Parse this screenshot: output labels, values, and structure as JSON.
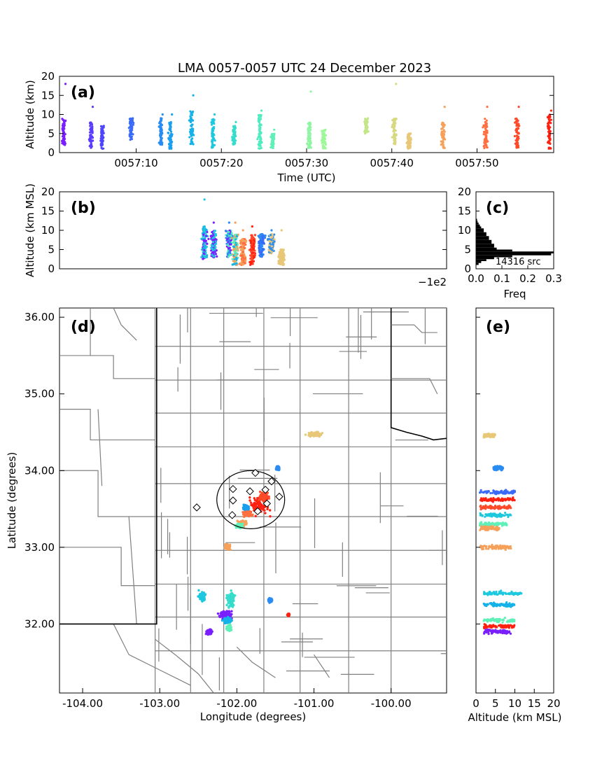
{
  "figure": {
    "title": "LMA 0057-0057 UTC 24 December 2023"
  },
  "chart_data": [
    {
      "panel": "(a)",
      "type": "scatter",
      "xlabel": "Time (UTC)",
      "ylabel": "Altitude (km)",
      "x_tick_labels": [
        "0057:10",
        "0057:20",
        "0057:30",
        "0057:40",
        "0057:50"
      ],
      "x_tick_seconds": [
        10,
        20,
        30,
        40,
        50
      ],
      "xlim_seconds": [
        1,
        59
      ],
      "ylim": [
        0,
        20
      ],
      "y_ticks": [
        0,
        5,
        10,
        15,
        20
      ],
      "colormap": "rainbow (time)",
      "flashes": [
        {
          "t": 1.5,
          "zmin": 2,
          "zmax": 9,
          "top": 18,
          "color": "#7a1fff"
        },
        {
          "t": 4.7,
          "zmin": 1,
          "zmax": 8,
          "top": 12,
          "color": "#5a3cff"
        },
        {
          "t": 6.0,
          "zmin": 1,
          "zmax": 7,
          "top": 7,
          "color": "#4f45fe"
        },
        {
          "t": 9.4,
          "zmin": 3,
          "zmax": 9,
          "top": 9,
          "color": "#3a6af8"
        },
        {
          "t": 12.9,
          "zmin": 2,
          "zmax": 9,
          "top": 10,
          "color": "#2a8cf2"
        },
        {
          "t": 14.0,
          "zmin": 1,
          "zmax": 8,
          "top": 10,
          "color": "#1a9fee"
        },
        {
          "t": 16.5,
          "zmin": 2,
          "zmax": 11,
          "top": 15,
          "color": "#14b2e8"
        },
        {
          "t": 19.0,
          "zmin": 1,
          "zmax": 9,
          "top": 10,
          "color": "#1ec8de"
        },
        {
          "t": 21.5,
          "zmin": 2,
          "zmax": 7,
          "top": 8,
          "color": "#36dccc"
        },
        {
          "t": 24.5,
          "zmin": 1,
          "zmax": 10,
          "top": 11,
          "color": "#4fecc0"
        },
        {
          "t": 26.0,
          "zmin": 1,
          "zmax": 5,
          "top": 6,
          "color": "#60f0b8"
        },
        {
          "t": 30.3,
          "zmin": 1,
          "zmax": 8,
          "top": 16,
          "color": "#8ef5a2"
        },
        {
          "t": 32.0,
          "zmin": 1,
          "zmax": 6,
          "top": 6,
          "color": "#9ef79a"
        },
        {
          "t": 37.0,
          "zmin": 5,
          "zmax": 9,
          "top": 9,
          "color": "#c4e68a"
        },
        {
          "t": 40.3,
          "zmin": 2,
          "zmax": 9,
          "top": 18,
          "color": "#d8d880"
        },
        {
          "t": 42.0,
          "zmin": 1,
          "zmax": 5,
          "top": 5,
          "color": "#e8c878"
        },
        {
          "t": 46.0,
          "zmin": 1,
          "zmax": 8,
          "top": 12,
          "color": "#f7a05a"
        },
        {
          "t": 51.0,
          "zmin": 1,
          "zmax": 9,
          "top": 12,
          "color": "#ff7040"
        },
        {
          "t": 54.7,
          "zmin": 1,
          "zmax": 9,
          "top": 12,
          "color": "#ff4a2a"
        },
        {
          "t": 58.5,
          "zmin": 1,
          "zmax": 10,
          "top": 11,
          "color": "#ff2010"
        }
      ]
    },
    {
      "panel": "(b)",
      "type": "scatter",
      "xlabel": "",
      "ylabel": "Altitude (km MSL)",
      "offset_text": "−1e2",
      "ylim": [
        0,
        20
      ],
      "y_ticks": [
        0,
        5,
        10,
        15,
        20
      ],
      "clusters": [
        {
          "lon": -102.42,
          "zmin": 2.5,
          "zmax": 11,
          "top": 18,
          "colors": [
            "#1ec8de",
            "#7a1fff",
            "#14b2e8"
          ]
        },
        {
          "lon": -102.3,
          "zmin": 3,
          "zmax": 10,
          "top": 12,
          "colors": [
            "#7a1fff",
            "#1ec8de"
          ]
        },
        {
          "lon": -102.1,
          "zmin": 3,
          "zmax": 10,
          "top": 12,
          "colors": [
            "#2a8cf2",
            "#4fecc0",
            "#7a1fff"
          ]
        },
        {
          "lon": -102.02,
          "zmin": 1,
          "zmax": 9,
          "top": 12,
          "colors": [
            "#f7a05a",
            "#60f0b8",
            "#14b2e8"
          ]
        },
        {
          "lon": -101.92,
          "zmin": 1,
          "zmax": 8,
          "top": 10,
          "colors": [
            "#f7a05a",
            "#ff7040"
          ]
        },
        {
          "lon": -101.8,
          "zmin": 1,
          "zmax": 9,
          "top": 11,
          "colors": [
            "#ff2010",
            "#ff4a2a"
          ]
        },
        {
          "lon": -101.68,
          "zmin": 3,
          "zmax": 9,
          "top": 9,
          "colors": [
            "#2a8cf2",
            "#3a6af8"
          ]
        },
        {
          "lon": -101.55,
          "zmin": 4,
          "zmax": 9,
          "top": 10,
          "colors": [
            "#2a8cf2",
            "#e8c878"
          ]
        },
        {
          "lon": -101.42,
          "zmin": 1,
          "zmax": 5,
          "top": 10,
          "colors": [
            "#e8c878"
          ]
        }
      ]
    },
    {
      "panel": "(c)",
      "type": "bar",
      "xlabel": "Freq",
      "xlim": [
        0,
        0.3
      ],
      "x_tick_labels": [
        "0.0",
        "0.1",
        "0.2",
        "0.3"
      ],
      "ylim": [
        0,
        20
      ],
      "y_ticks": [
        0,
        5,
        10,
        15,
        20
      ],
      "annotation": "14316 src",
      "altitude_km": [
        1,
        1.5,
        2,
        2.5,
        3,
        3.5,
        4,
        4.5,
        5,
        5.5,
        6,
        6.5,
        7,
        7.5,
        8,
        8.5,
        9,
        9.5,
        10,
        10.5,
        11,
        11.5,
        12,
        12.5
      ],
      "freq": [
        0.01,
        0.02,
        0.04,
        0.07,
        0.14,
        0.29,
        0.3,
        0.14,
        0.08,
        0.07,
        0.07,
        0.06,
        0.06,
        0.05,
        0.05,
        0.04,
        0.04,
        0.03,
        0.03,
        0.02,
        0.015,
        0.01,
        0.006,
        0.004
      ]
    },
    {
      "panel": "(d)",
      "type": "scatter",
      "xlabel": "Longitude (degrees)",
      "ylabel": "Latitude (degrees)",
      "x_tick_values": [
        -104.0,
        -103.0,
        -102.0,
        -101.0,
        -100.0
      ],
      "x_tick_labels": [
        "-104.00",
        "-103.00",
        "-102.00",
        "-101.00",
        "-100.00"
      ],
      "y_tick_values": [
        32.0,
        33.0,
        34.0,
        35.0,
        36.0
      ],
      "y_tick_labels": [
        "32.00",
        "33.00",
        "34.00",
        "35.00",
        "36.00"
      ],
      "xlim": [
        -104.3,
        -99.28
      ],
      "ylim": [
        31.1,
        36.12
      ],
      "network_center": {
        "lon": -101.82,
        "lat": 33.62,
        "radius_deg": 0.44
      },
      "stations": [
        {
          "lon": -101.76,
          "lat": 33.97
        },
        {
          "lon": -101.55,
          "lat": 33.86
        },
        {
          "lon": -102.05,
          "lat": 33.76
        },
        {
          "lon": -101.83,
          "lat": 33.73
        },
        {
          "lon": -101.63,
          "lat": 33.75
        },
        {
          "lon": -101.45,
          "lat": 33.66
        },
        {
          "lon": -102.05,
          "lat": 33.61
        },
        {
          "lon": -101.61,
          "lat": 33.57
        },
        {
          "lon": -102.52,
          "lat": 33.52
        },
        {
          "lon": -101.73,
          "lat": 33.47
        },
        {
          "lon": -102.06,
          "lat": 33.42
        }
      ],
      "clusters": [
        {
          "lon": -101.72,
          "lat": 33.55,
          "dlon": 0.22,
          "dlat": 0.18,
          "color": "#ff2010"
        },
        {
          "lon": -101.65,
          "lat": 33.66,
          "dlon": 0.1,
          "dlat": 0.08,
          "color": "#ff4a2a"
        },
        {
          "lon": -101.86,
          "lat": 33.44,
          "dlon": 0.1,
          "dlat": 0.06,
          "color": "#ff7040"
        },
        {
          "lon": -101.93,
          "lat": 33.31,
          "dlon": 0.08,
          "dlat": 0.06,
          "color": "#f7a05a"
        },
        {
          "lon": -101.97,
          "lat": 33.28,
          "dlon": 0.07,
          "dlat": 0.04,
          "color": "#60f0b8"
        },
        {
          "lon": -101.88,
          "lat": 33.52,
          "dlon": 0.06,
          "dlat": 0.05,
          "color": "#1a9fee"
        },
        {
          "lon": -102.12,
          "lat": 33.01,
          "dlon": 0.05,
          "dlat": 0.05,
          "color": "#f7a05a"
        },
        {
          "lon": -101.47,
          "lat": 34.03,
          "dlon": 0.03,
          "dlat": 0.04,
          "color": "#2a8cf2"
        },
        {
          "lon": -101.0,
          "lat": 34.47,
          "dlon": 0.14,
          "dlat": 0.05,
          "color": "#e8c878"
        },
        {
          "lon": -102.45,
          "lat": 32.36,
          "dlon": 0.07,
          "dlat": 0.1,
          "color": "#1ec8de"
        },
        {
          "lon": -102.08,
          "lat": 32.32,
          "dlon": 0.08,
          "dlat": 0.14,
          "color": "#36dccc"
        },
        {
          "lon": -102.15,
          "lat": 32.12,
          "dlon": 0.14,
          "dlat": 0.09,
          "color": "#7a1fff"
        },
        {
          "lon": -102.12,
          "lat": 32.04,
          "dlon": 0.08,
          "dlat": 0.06,
          "color": "#14b2e8"
        },
        {
          "lon": -102.1,
          "lat": 31.95,
          "dlon": 0.06,
          "dlat": 0.06,
          "color": "#60f0b8"
        },
        {
          "lon": -102.36,
          "lat": 31.9,
          "dlon": 0.06,
          "dlat": 0.05,
          "color": "#7a1fff"
        },
        {
          "lon": -101.57,
          "lat": 32.31,
          "dlon": 0.04,
          "dlat": 0.04,
          "color": "#2a8cf2"
        },
        {
          "lon": -101.33,
          "lat": 32.12,
          "dlon": 0.02,
          "dlat": 0.02,
          "color": "#ff2010"
        }
      ]
    },
    {
      "panel": "(e)",
      "type": "scatter",
      "xlabel": "Altitude (km MSL)",
      "xlim": [
        0,
        20
      ],
      "x_ticks": [
        0,
        5,
        10,
        15,
        20
      ],
      "clusters": [
        {
          "lat": 34.46,
          "zmin": 2,
          "zmax": 5,
          "color": "#e8c878"
        },
        {
          "lat": 34.03,
          "zmin": 4.5,
          "zmax": 7,
          "color": "#2a8cf2"
        },
        {
          "lat": 33.72,
          "zmin": 1,
          "zmax": 10,
          "color": "#3a6af8"
        },
        {
          "lat": 33.62,
          "zmin": 1,
          "zmax": 10,
          "color": "#ff2010"
        },
        {
          "lat": 33.52,
          "zmin": 1,
          "zmax": 9,
          "color": "#ff4a2a"
        },
        {
          "lat": 33.42,
          "zmin": 1,
          "zmax": 9,
          "color": "#1ec8de"
        },
        {
          "lat": 33.3,
          "zmin": 1,
          "zmax": 8,
          "color": "#60f0b8"
        },
        {
          "lat": 33.25,
          "zmin": 1,
          "zmax": 6,
          "color": "#f7a05a"
        },
        {
          "lat": 33.0,
          "zmin": 1,
          "zmax": 9,
          "color": "#f7a05a"
        },
        {
          "lat": 32.4,
          "zmin": 2,
          "zmax": 12,
          "color": "#1ec8de"
        },
        {
          "lat": 32.25,
          "zmin": 2,
          "zmax": 10,
          "color": "#14b2e8"
        },
        {
          "lat": 32.05,
          "zmin": 2,
          "zmax": 10,
          "color": "#60f0b8"
        },
        {
          "lat": 31.97,
          "zmin": 2,
          "zmax": 10,
          "color": "#ff2010"
        },
        {
          "lat": 31.9,
          "zmin": 2,
          "zmax": 9,
          "color": "#7a1fff"
        }
      ]
    }
  ]
}
